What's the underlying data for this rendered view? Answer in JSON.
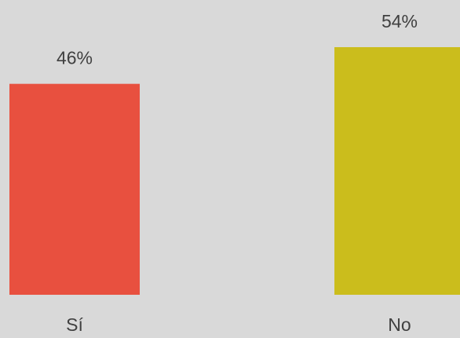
{
  "chart_data": {
    "type": "bar",
    "categories": [
      "Sí",
      "No"
    ],
    "values": [
      46,
      54
    ],
    "value_labels": [
      "46%",
      "54%"
    ],
    "colors": [
      "#e8503f",
      "#cbbd1c"
    ]
  }
}
